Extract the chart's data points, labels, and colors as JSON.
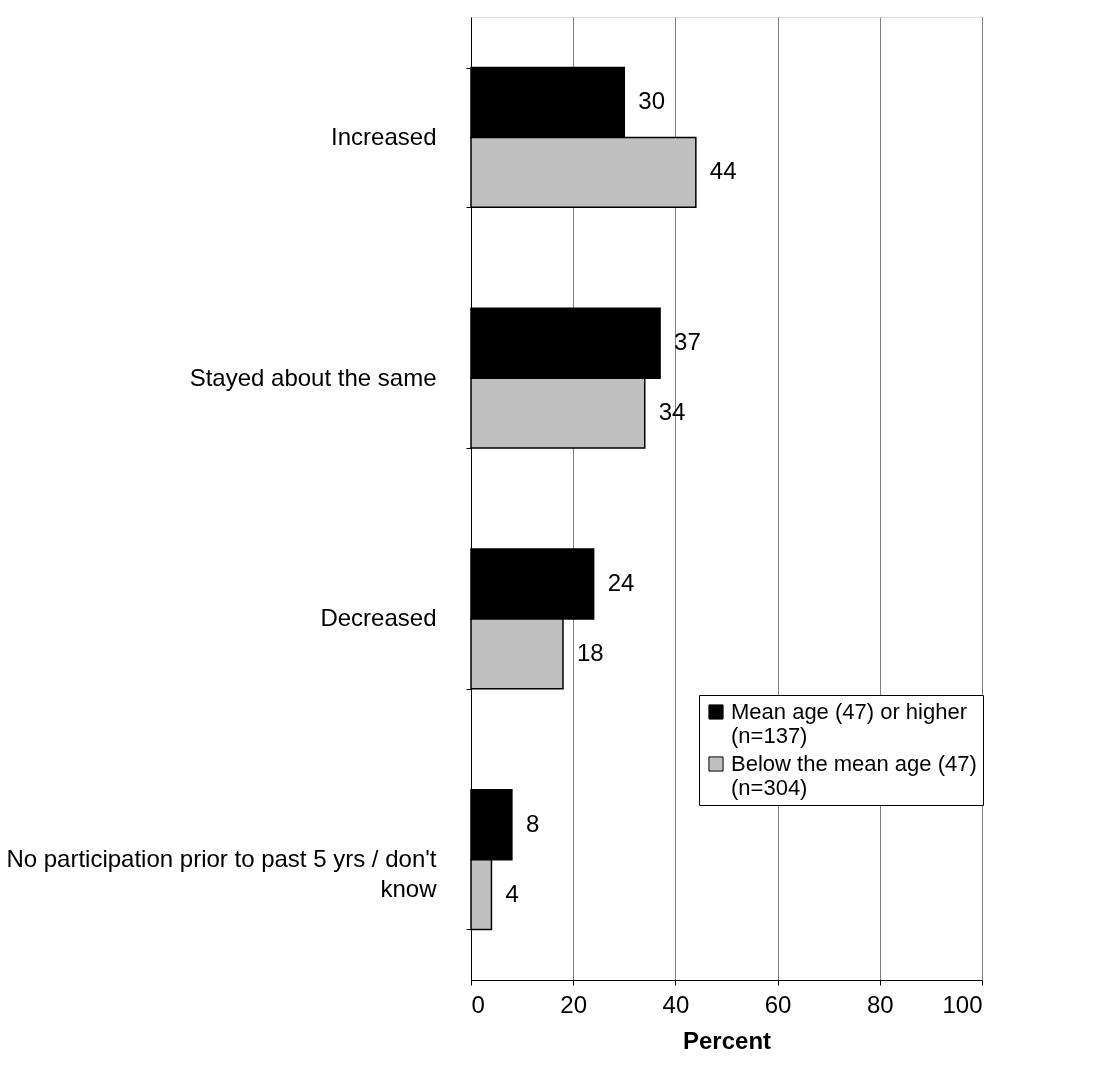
{
  "chart_data": {
    "type": "bar",
    "orientation": "horizontal",
    "xlabel": "Percent",
    "categories": [
      "Increased",
      "Stayed about the same",
      "Decreased",
      "No participation prior to past 5 yrs / don't know"
    ],
    "series": [
      {
        "name": "Mean age (47) or higher\n(n=137)",
        "color": "#000000",
        "values": [
          30,
          37,
          24,
          8
        ]
      },
      {
        "name": "Below the mean age (47)\n(n=304)",
        "color": "#c0c0c0",
        "values": [
          44,
          34,
          18,
          4
        ]
      }
    ],
    "xlim": [
      0,
      100
    ],
    "xticks": [
      0,
      20,
      40,
      60,
      80,
      100
    ],
    "grid": "x",
    "legend": "bottom right",
    "data_labels": true
  }
}
